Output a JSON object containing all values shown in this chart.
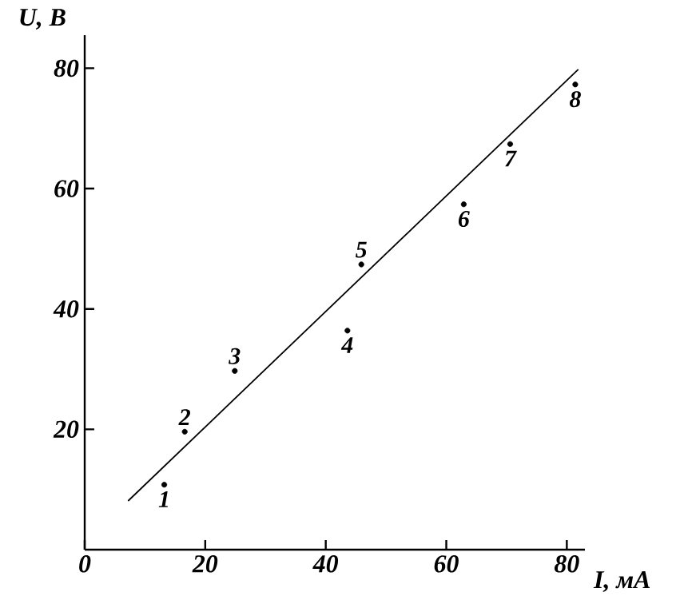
{
  "chart_data": {
    "type": "scatter",
    "xlabel": "I, мА",
    "ylabel": "U, В",
    "xlim": [
      0,
      83
    ],
    "ylim": [
      0,
      85.5
    ],
    "xticks": [
      0,
      20,
      40,
      60,
      80
    ],
    "yticks": [
      20,
      40,
      60,
      80
    ],
    "series": [
      {
        "x": [
          13.2,
          16.6,
          24.9,
          43.6,
          45.9,
          62.9,
          70.6,
          81.4
        ],
        "values": [
          10.8,
          19.6,
          29.7,
          36.4,
          47.4,
          57.4,
          67.4,
          77.3
        ],
        "color": "#000000",
        "marker": "circle"
      },
      {
        "type": "line",
        "x": [
          7.2,
          81.9
        ],
        "values": [
          8.1,
          79.8
        ],
        "color": "#000000",
        "line_style": "solid"
      }
    ],
    "annotations": [
      {
        "text": "1",
        "x": 13.2,
        "y": 10.8
      },
      {
        "text": "2",
        "x": 16.6,
        "y": 19.6
      },
      {
        "text": "3",
        "x": 24.9,
        "y": 29.7
      },
      {
        "text": "4",
        "x": 43.6,
        "y": 36.4
      },
      {
        "text": "5",
        "x": 45.9,
        "y": 47.4
      },
      {
        "text": "6",
        "x": 62.9,
        "y": 57.4
      },
      {
        "text": "7",
        "x": 70.6,
        "y": 67.4
      },
      {
        "text": "8",
        "x": 81.4,
        "y": 77.3
      }
    ]
  }
}
